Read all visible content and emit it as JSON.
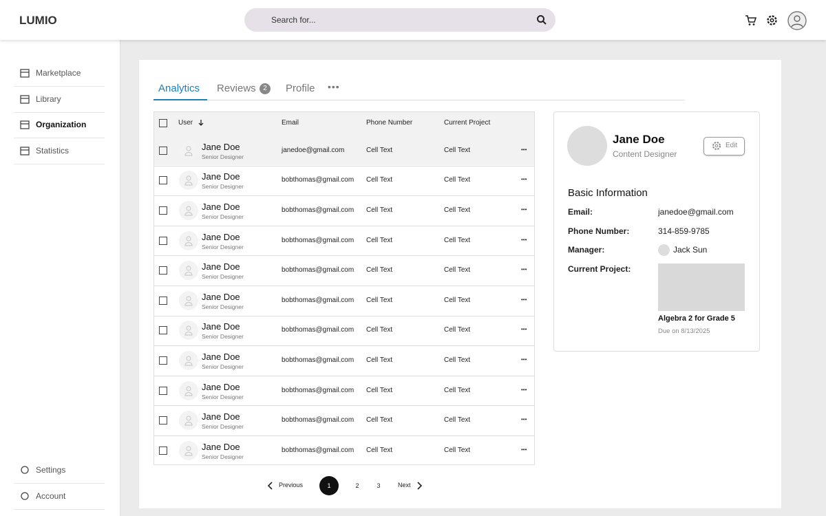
{
  "header": {
    "brand": "LUMIO",
    "search": "Search for..."
  },
  "nav": {
    "items": [
      "Marketplace",
      "Library",
      "Organization",
      "Statistics"
    ],
    "active": 2,
    "bottom": [
      "Settings",
      "Account"
    ]
  },
  "tabs": [
    {
      "label": "Analytics"
    },
    {
      "label": "Reviews",
      "badge": 2
    },
    {
      "label": "Profile"
    }
  ],
  "table": {
    "columns": [
      "User",
      "Email",
      "Phone Number",
      "Current Project"
    ],
    "rows": [
      {
        "name": "Jane Doe",
        "role": "Senior Designer",
        "email": "janedoe@gmail.com",
        "phone": "Cell Text",
        "project": "Cell Text"
      },
      {
        "name": "Jane Doe",
        "role": "Senior Designer",
        "email": "bobthomas@gmail.com",
        "phone": "Cell Text",
        "project": "Cell Text"
      },
      {
        "name": "Jane Doe",
        "role": "Senior Designer",
        "email": "bobthomas@gmail.com",
        "phone": "Cell Text",
        "project": "Cell Text"
      },
      {
        "name": "Jane Doe",
        "role": "Senior Designer",
        "email": "bobthomas@gmail.com",
        "phone": "Cell Text",
        "project": "Cell Text"
      },
      {
        "name": "Jane Doe",
        "role": "Senior Designer",
        "email": "bobthomas@gmail.com",
        "phone": "Cell Text",
        "project": "Cell Text"
      },
      {
        "name": "Jane Doe",
        "role": "Senior Designer",
        "email": "bobthomas@gmail.com",
        "phone": "Cell Text",
        "project": "Cell Text"
      },
      {
        "name": "Jane Doe",
        "role": "Senior Designer",
        "email": "bobthomas@gmail.com",
        "phone": "Cell Text",
        "project": "Cell Text"
      },
      {
        "name": "Jane Doe",
        "role": "Senior Designer",
        "email": "bobthomas@gmail.com",
        "phone": "Cell Text",
        "project": "Cell Text"
      },
      {
        "name": "Jane Doe",
        "role": "Senior Designer",
        "email": "bobthomas@gmail.com",
        "phone": "Cell Text",
        "project": "Cell Text"
      },
      {
        "name": "Jane Doe",
        "role": "Senior Designer",
        "email": "bobthomas@gmail.com",
        "phone": "Cell Text",
        "project": "Cell Text"
      },
      {
        "name": "Jane Doe",
        "role": "Senior Designer",
        "email": "bobthomas@gmail.com",
        "phone": "Cell Text",
        "project": "Cell Text"
      }
    ]
  },
  "pagination": {
    "previous": "Previous",
    "pages": [
      1,
      2,
      3
    ],
    "current": 0,
    "next": "Next"
  },
  "profile": {
    "name": "Jane Doe",
    "role": "Content Designer",
    "edit": "Edit",
    "section": "Basic Information",
    "fields": [
      {
        "label": "Email:",
        "value": "janedoe@gmail.com"
      },
      {
        "label": "Phone Number:",
        "value": "314-859-9785"
      },
      {
        "label": "Manager:",
        "value": "Jack Sun"
      },
      {
        "label": "Current Project:"
      }
    ],
    "project_title": "Algebra 2 for Grade 5",
    "project_due": "Due on 8/13/2025"
  }
}
